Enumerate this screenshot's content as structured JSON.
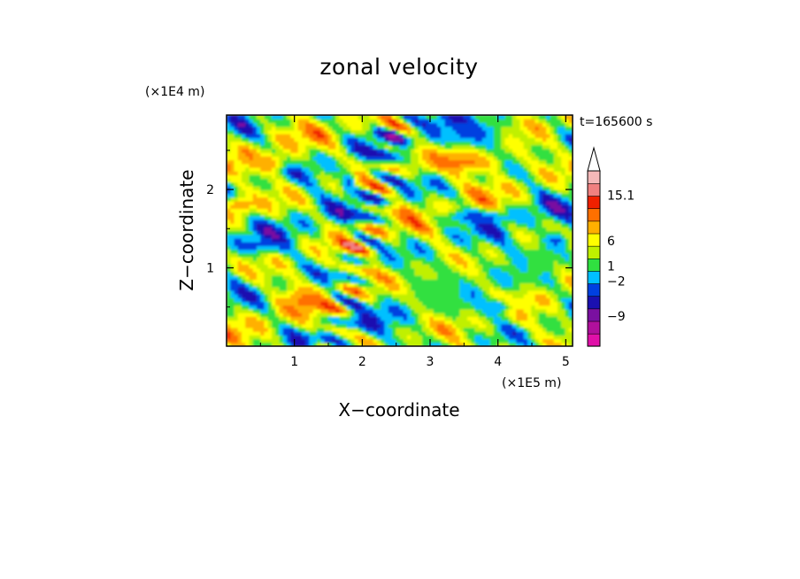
{
  "chart_data": {
    "type": "heatmap",
    "title": "zonal velocity",
    "xlabel": "X−coordinate",
    "ylabel": "Z−coordinate",
    "x_unit": "(×1E5 m)",
    "y_unit": "(×1E4 m)",
    "time_label": "t=165600 s",
    "xlim": [
      0,
      5.1
    ],
    "ylim": [
      0,
      2.95
    ],
    "x_ticks": [
      {
        "value": 1,
        "label": "1"
      },
      {
        "value": 2,
        "label": "2"
      },
      {
        "value": 3,
        "label": "3"
      },
      {
        "value": 4,
        "label": "4"
      },
      {
        "value": 5,
        "label": "5"
      }
    ],
    "y_ticks": [
      {
        "value": 1,
        "label": "1"
      },
      {
        "value": 2,
        "label": "2"
      }
    ],
    "colorbar": {
      "extend": "max",
      "colors": [
        "#e010a8",
        "#b0109c",
        "#7a10a0",
        "#1a10b0",
        "#0040e0",
        "#00c0ff",
        "#30e040",
        "#c0f000",
        "#ffff00",
        "#ffb000",
        "#ff7000",
        "#f02000",
        "#f08080",
        "#f4b8b8"
      ],
      "labels": [
        {
          "value": 15.1,
          "label": "15.1"
        },
        {
          "value": 6,
          "label": "6"
        },
        {
          "value": 1,
          "label": "1"
        },
        {
          "value": -2,
          "label": "−2"
        },
        {
          "value": -9,
          "label": "−9"
        }
      ]
    },
    "features": [
      {
        "kind": "blob",
        "x": 3.65,
        "z": 2.72,
        "rx": 0.55,
        "rz": 0.18,
        "value": -5
      },
      {
        "kind": "blob",
        "x": 3.45,
        "z": 2.35,
        "rx": 0.65,
        "rz": 0.14,
        "value": 7
      },
      {
        "kind": "blob",
        "x": 3.7,
        "z": 1.65,
        "rx": 0.55,
        "rz": 0.09,
        "value": -5
      },
      {
        "kind": "blob",
        "x": 1.15,
        "z": 0.6,
        "rx": 0.3,
        "rz": 0.16,
        "value": 7
      },
      {
        "kind": "blob",
        "x": 0.45,
        "z": 1.3,
        "rx": 0.35,
        "rz": 0.1,
        "value": -5
      },
      {
        "kind": "blob",
        "x": 0.6,
        "z": 2.35,
        "rx": 0.3,
        "rz": 0.12,
        "value": 6
      },
      {
        "kind": "blob",
        "x": 4.55,
        "z": 1.05,
        "rx": 0.3,
        "rz": 0.35,
        "value": -1
      },
      {
        "kind": "blob",
        "x": 3.1,
        "z": 0.75,
        "rx": 0.55,
        "rz": 0.35,
        "value": 0
      },
      {
        "kind": "blob",
        "x": 1.8,
        "z": 2.1,
        "rx": 0.08,
        "rz": 0.15,
        "value": -5
      },
      {
        "kind": "blob",
        "x": 4.85,
        "z": 1.35,
        "rx": 0.2,
        "rz": 0.15,
        "value": -5
      },
      {
        "kind": "blob",
        "x": 0.2,
        "z": 1.8,
        "rx": 0.25,
        "rz": 0.12,
        "value": 6
      },
      {
        "kind": "blob",
        "x": 3.95,
        "z": 0.5,
        "rx": 0.3,
        "rz": 0.12,
        "value": -4
      }
    ]
  }
}
